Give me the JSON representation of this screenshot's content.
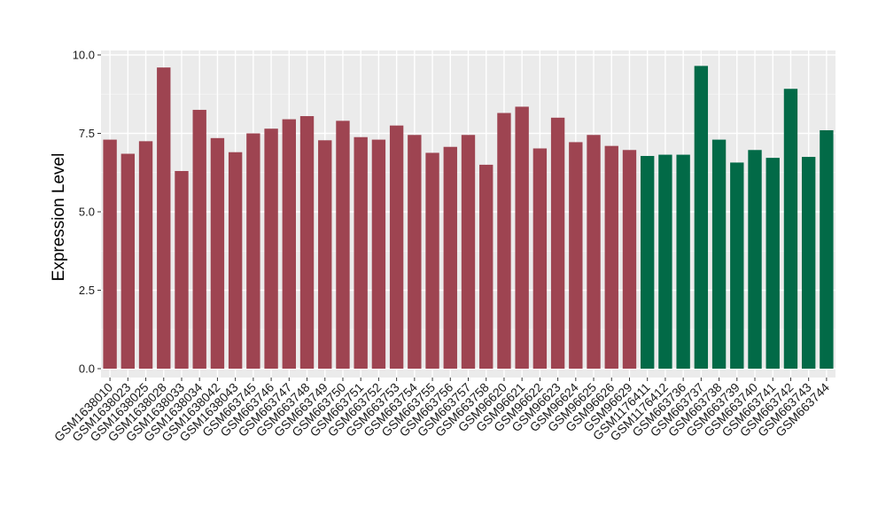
{
  "chart_data": {
    "type": "bar",
    "ylabel": "Expression Level",
    "xlabel": "",
    "ylim": [
      0,
      10.1
    ],
    "yticks": [
      0.0,
      2.5,
      5.0,
      7.5,
      10.0
    ],
    "ytick_labels": [
      "0.0",
      "2.5",
      "5.0",
      "7.5",
      "10.0"
    ],
    "grid": true,
    "legend": "none",
    "colors": {
      "group1": "#9e4451",
      "group2": "#026a47",
      "panel": "#ebebeb",
      "grid": "#ffffff"
    },
    "categories": [
      "GSM1638010",
      "GSM1638023",
      "GSM1638025",
      "GSM1638028",
      "GSM1638033",
      "GSM1638034",
      "GSM1638042",
      "GSM1638043",
      "GSM663745",
      "GSM663746",
      "GSM663747",
      "GSM663748",
      "GSM663749",
      "GSM663750",
      "GSM663751",
      "GSM663752",
      "GSM663753",
      "GSM663754",
      "GSM663755",
      "GSM663756",
      "GSM663757",
      "GSM663758",
      "GSM96620",
      "GSM96621",
      "GSM96622",
      "GSM96623",
      "GSM96624",
      "GSM96625",
      "GSM96626",
      "GSM96629",
      "GSM1176411",
      "GSM1176412",
      "GSM663736",
      "GSM663737",
      "GSM663738",
      "GSM663739",
      "GSM663740",
      "GSM663741",
      "GSM663742",
      "GSM663743",
      "GSM663744"
    ],
    "values": [
      7.3,
      6.85,
      7.25,
      9.6,
      6.3,
      8.25,
      7.35,
      6.9,
      7.5,
      7.65,
      7.95,
      8.05,
      7.28,
      7.9,
      7.38,
      7.3,
      7.75,
      7.45,
      6.88,
      7.07,
      7.45,
      6.5,
      8.15,
      8.35,
      7.02,
      8.0,
      7.22,
      7.45,
      7.1,
      6.97,
      6.78,
      6.82,
      6.82,
      9.65,
      7.3,
      6.57,
      6.97,
      6.72,
      8.92,
      6.75,
      7.6
    ],
    "groups": [
      "group1",
      "group1",
      "group1",
      "group1",
      "group1",
      "group1",
      "group1",
      "group1",
      "group1",
      "group1",
      "group1",
      "group1",
      "group1",
      "group1",
      "group1",
      "group1",
      "group1",
      "group1",
      "group1",
      "group1",
      "group1",
      "group1",
      "group1",
      "group1",
      "group1",
      "group1",
      "group1",
      "group1",
      "group1",
      "group1",
      "group2",
      "group2",
      "group2",
      "group2",
      "group2",
      "group2",
      "group2",
      "group2",
      "group2",
      "group2",
      "group2"
    ]
  }
}
